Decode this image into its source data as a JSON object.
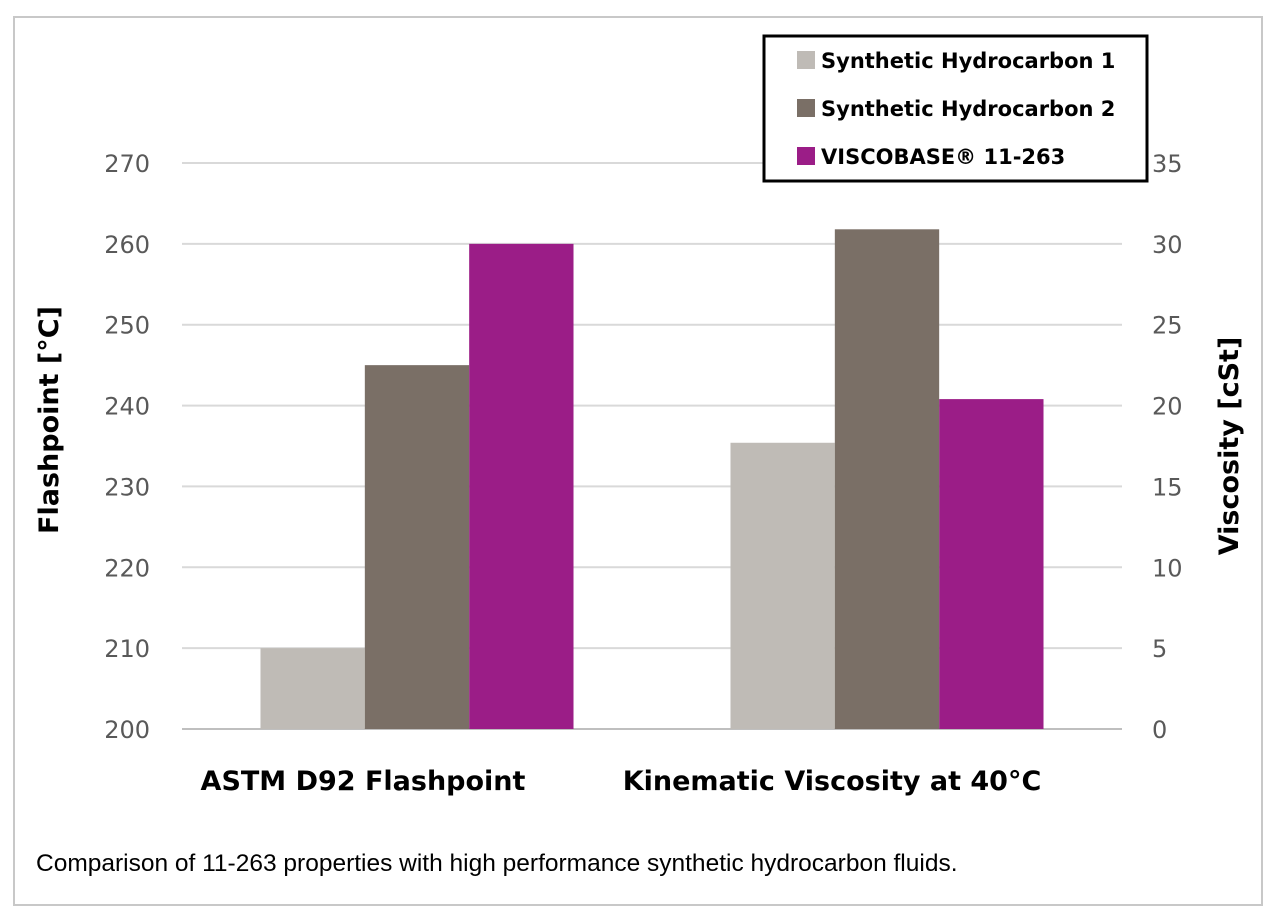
{
  "chart_data": {
    "type": "bar",
    "categories": [
      "ASTM D92 Flashpoint",
      "Kinematic Viscosity at 40°C"
    ],
    "series": [
      {
        "name": "Synthetic Hydrocarbon 1",
        "color": "#bfbbb6",
        "values": [
          210,
          17.7
        ]
      },
      {
        "name": "Synthetic Hydrocarbon 2",
        "color": "#7a6f66",
        "values": [
          245,
          30.9
        ]
      },
      {
        "name": "VISCOBASE® 11-263",
        "color": "#9b1d87",
        "values": [
          260,
          20.4
        ]
      }
    ],
    "value_axis_per_category": [
      "left",
      "right"
    ],
    "left_axis": {
      "label": "Flashpoint [°C]",
      "min": 200,
      "max": 270,
      "step": 10,
      "ticks": [
        "200",
        "210",
        "220",
        "230",
        "240",
        "250",
        "260",
        "270"
      ]
    },
    "right_axis": {
      "label": "Viscosity [cSt]",
      "min": 0,
      "max": 35,
      "step": 5,
      "ticks": [
        "0",
        "5",
        "10",
        "15",
        "20",
        "25",
        "30",
        "35"
      ]
    },
    "grid": true,
    "legend_position": "top-right"
  },
  "caption": "Comparison of 11-263 properties with high performance synthetic hydrocarbon fluids."
}
